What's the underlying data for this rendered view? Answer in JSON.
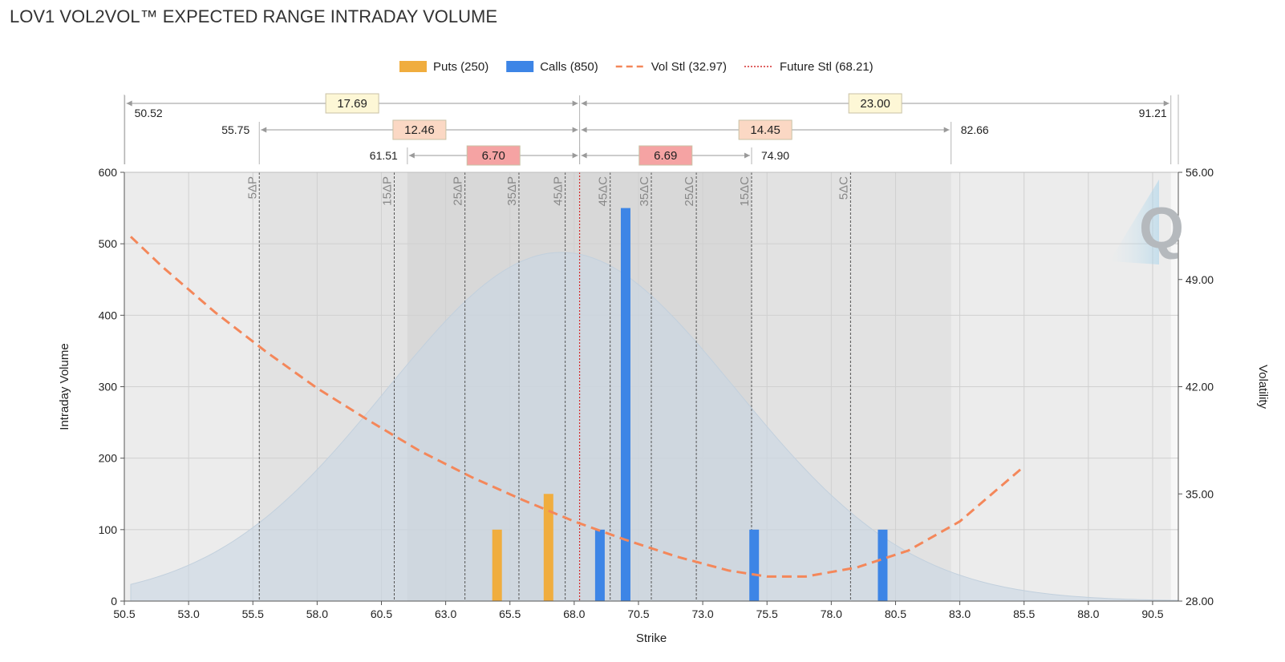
{
  "title": "LOV1 VOL2VOL™ EXPECTED RANGE INTRADAY VOLUME",
  "chart_data": {
    "type": "bar",
    "xlabel": "Strike",
    "ylabel": "Intraday Volume",
    "y2label": "Volatility",
    "xlim": [
      50.5,
      91.5
    ],
    "ylim": [
      0,
      600
    ],
    "y2lim": [
      28.0,
      56.0
    ],
    "x_ticks": [
      "50.5",
      "53.0",
      "55.5",
      "58.0",
      "60.5",
      "63.0",
      "65.5",
      "68.0",
      "70.5",
      "73.0",
      "75.5",
      "78.0",
      "80.5",
      "83.0",
      "85.5",
      "88.0",
      "90.5"
    ],
    "y_ticks": [
      "0",
      "100",
      "200",
      "300",
      "400",
      "500",
      "600"
    ],
    "y2_ticks": [
      "28.00",
      "35.00",
      "42.00",
      "49.00",
      "56.00"
    ],
    "grid": true,
    "legend_position": "top-center",
    "legend": [
      {
        "label": "Puts (250)",
        "kind": "bar",
        "color": "#f0ad3e"
      },
      {
        "label": "Calls (850)",
        "kind": "bar",
        "color": "#3d85e6"
      },
      {
        "label": "Vol Stl (32.97)",
        "kind": "dashed",
        "color": "#f4875a"
      },
      {
        "label": "Future Stl (68.21)",
        "kind": "dotted",
        "color": "#d42a2a"
      }
    ],
    "series": [
      {
        "name": "Puts (250)",
        "color": "#f0ad3e",
        "points": [
          {
            "x": 65.0,
            "y": 100
          },
          {
            "x": 67.0,
            "y": 150
          }
        ]
      },
      {
        "name": "Calls (850)",
        "color": "#3d85e6",
        "points": [
          {
            "x": 69.0,
            "y": 100
          },
          {
            "x": 70.0,
            "y": 550
          },
          {
            "x": 75.0,
            "y": 100
          },
          {
            "x": 80.0,
            "y": 100
          }
        ]
      }
    ],
    "vol_curve": {
      "name": "Vol Stl (32.97)",
      "color": "#f4875a",
      "x": [
        50.75,
        52.0,
        54.0,
        56.0,
        58.0,
        60.0,
        62.0,
        64.0,
        66.0,
        68.0,
        70.0,
        72.0,
        74.0,
        75.5,
        77.0,
        79.0,
        81.0,
        83.0,
        85.5
      ],
      "y": [
        51.8,
        49.8,
        46.9,
        44.3,
        41.9,
        39.8,
        37.8,
        36.1,
        34.6,
        33.2,
        32.0,
        30.9,
        30.0,
        29.6,
        29.6,
        30.2,
        31.3,
        33.2,
        36.8
      ]
    },
    "distribution": {
      "color": "#c9d6e3",
      "peak_x": 67.5,
      "peak_y": 488,
      "sigma": 6.8,
      "x_from": 50.75,
      "x_to": 91.5
    },
    "future_settle": 68.21,
    "delta_lines": [
      {
        "label": "5ΔP",
        "x": 55.75
      },
      {
        "label": "15ΔP",
        "x": 61.0
      },
      {
        "label": "25ΔP",
        "x": 63.75
      },
      {
        "label": "35ΔP",
        "x": 65.85
      },
      {
        "label": "45ΔP",
        "x": 67.65
      },
      {
        "label": "45ΔC",
        "x": 69.4
      },
      {
        "label": "35ΔC",
        "x": 71.0
      },
      {
        "label": "25ΔC",
        "x": 72.75
      },
      {
        "label": "15ΔC",
        "x": 74.9
      },
      {
        "label": "5ΔC",
        "x": 78.75
      }
    ],
    "shaded_bands": [
      {
        "from": 50.52,
        "to": 91.21,
        "shade": "#ececec"
      },
      {
        "from": 55.75,
        "to": 82.66,
        "shade": "#e2e2e2"
      },
      {
        "from": 61.51,
        "to": 74.9,
        "shade": "#d8d8d8"
      }
    ],
    "ranges": [
      {
        "row": 0,
        "low": 50.52,
        "high": 91.21,
        "low_label": "50.52",
        "high_label": "91.21",
        "left_width": "17.69",
        "right_width": "23.00",
        "box_color": "#fdf7d6"
      },
      {
        "row": 1,
        "low": 55.75,
        "high": 82.66,
        "low_label": "55.75",
        "high_label": "82.66",
        "left_width": "12.46",
        "right_width": "14.45",
        "box_color": "#fbd8c4"
      },
      {
        "row": 2,
        "low": 61.51,
        "high": 74.9,
        "low_label": "61.51",
        "high_label": "74.90",
        "left_width": "6.70",
        "right_width": "6.69",
        "box_color": "#f5a3a3"
      }
    ]
  }
}
